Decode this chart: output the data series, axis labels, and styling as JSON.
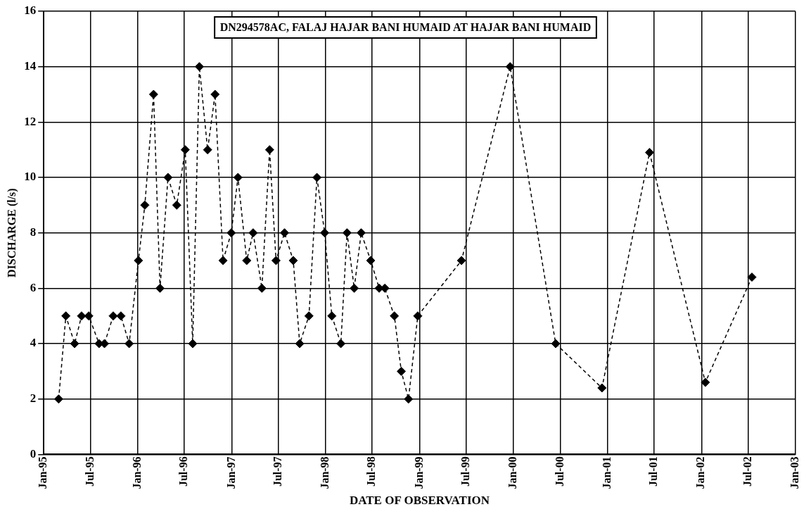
{
  "chart_data": {
    "type": "line",
    "title": "DN294578AC, FALAJ HAJAR BANI HUMAID AT HAJAR BANI HUMAID",
    "xlabel": "DATE OF OBSERVATION",
    "ylabel": "DISCHARGE (l/s)",
    "x": [
      "1995-02-28",
      "1995-03-28",
      "1995-05-01",
      "1995-05-28",
      "1995-06-25",
      "1995-08-04",
      "1995-08-25",
      "1995-09-28",
      "1995-10-28",
      "1995-11-29",
      "1996-01-04",
      "1996-01-29",
      "1996-03-03",
      "1996-03-28",
      "1996-04-28",
      "1996-06-01",
      "1996-07-04",
      "1996-08-02",
      "1996-08-28",
      "1996-09-29",
      "1996-10-28",
      "1996-11-28",
      "1996-12-30",
      "1997-01-25",
      "1997-02-28",
      "1997-03-25",
      "1997-04-28",
      "1997-05-28",
      "1997-06-22",
      "1997-07-25",
      "1997-08-28",
      "1997-09-22",
      "1997-10-28",
      "1997-11-28",
      "1997-12-28",
      "1998-01-25",
      "1998-03-01",
      "1998-03-25",
      "1998-04-22",
      "1998-05-19",
      "1998-06-25",
      "1998-07-28",
      "1998-08-19",
      "1998-09-25",
      "1998-10-22",
      "1998-11-19",
      "1998-12-25",
      "1999-06-13",
      "1999-12-19",
      "2000-06-13",
      "2000-12-10",
      "2001-06-13",
      "2002-01-16",
      "2002-07-16"
    ],
    "series": [
      {
        "color": "#000000",
        "values": [
          2,
          5,
          4,
          5,
          5,
          4,
          4,
          5,
          5,
          4,
          7,
          9,
          13,
          6,
          10,
          9,
          11,
          4,
          14,
          11,
          13,
          7,
          8,
          10,
          7,
          8,
          6,
          11,
          7,
          8,
          7,
          4,
          5,
          10,
          8,
          5,
          4,
          8,
          6,
          8,
          7,
          6,
          6,
          5,
          3,
          2,
          5,
          7,
          14,
          4,
          2.4,
          10.9,
          2.6,
          6.4
        ]
      }
    ],
    "xlim": [
      "1995-01",
      "2003-01"
    ],
    "xticks": [
      {
        "value": "1995-01",
        "label": "Jan-95"
      },
      {
        "value": "1995-07",
        "label": "Jul-95"
      },
      {
        "value": "1996-01",
        "label": "Jan-96"
      },
      {
        "value": "1996-07",
        "label": "Jul-96"
      },
      {
        "value": "1997-01",
        "label": "Jan-97"
      },
      {
        "value": "1997-07",
        "label": "Jul-97"
      },
      {
        "value": "1998-01",
        "label": "Jan-98"
      },
      {
        "value": "1998-07",
        "label": "Jul-98"
      },
      {
        "value": "1999-01",
        "label": "Jan-99"
      },
      {
        "value": "1999-07",
        "label": "Jul-99"
      },
      {
        "value": "2000-01",
        "label": "Jan-00"
      },
      {
        "value": "2000-07",
        "label": "Jul-00"
      },
      {
        "value": "2001-01",
        "label": "Jan-01"
      },
      {
        "value": "2001-07",
        "label": "Jul-01"
      },
      {
        "value": "2002-01",
        "label": "Jan-02"
      },
      {
        "value": "2002-07",
        "label": "Jul-02"
      },
      {
        "value": "2003-01",
        "label": "Jan-03"
      }
    ],
    "ylim": [
      0,
      16
    ],
    "yticks": [
      0,
      2,
      4,
      6,
      8,
      10,
      12,
      14,
      16
    ],
    "grid": true,
    "marker": "diamond",
    "line_style": "dashed",
    "legend": false
  }
}
